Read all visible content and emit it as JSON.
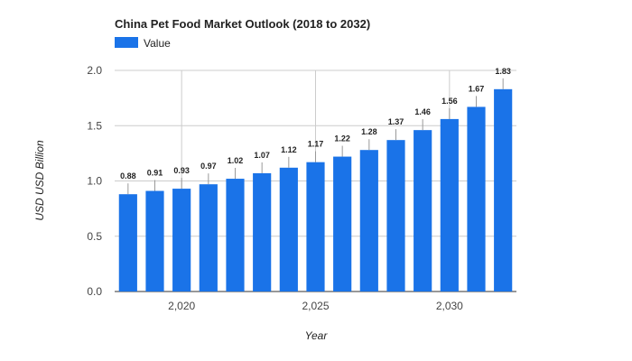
{
  "chart_data": {
    "type": "bar",
    "title": "China Pet Food Market Outlook (2018 to 2032)",
    "legend": {
      "position": "top-left"
    },
    "series": [
      {
        "name": "Value",
        "color": "#1a73e8",
        "x": [
          2018,
          2019,
          2020,
          2021,
          2022,
          2023,
          2024,
          2025,
          2026,
          2027,
          2028,
          2029,
          2030,
          2031,
          2032
        ],
        "values": [
          0.88,
          0.91,
          0.93,
          0.97,
          1.02,
          1.07,
          1.12,
          1.17,
          1.22,
          1.28,
          1.37,
          1.46,
          1.56,
          1.67,
          1.83
        ]
      }
    ],
    "xlabel": "Year",
    "ylabel": "USD USD Billion",
    "xticks": [
      2020,
      2025,
      2030
    ],
    "xtick_labels": [
      "2,020",
      "2,025",
      "2,030"
    ],
    "ylim": [
      0,
      2.0
    ],
    "yticks": [
      0,
      0.5,
      1.0,
      1.5,
      2.0
    ],
    "ytick_labels": [
      "0.0",
      "0.5",
      "1.0",
      "1.5",
      "2.0"
    ],
    "grid": true
  }
}
